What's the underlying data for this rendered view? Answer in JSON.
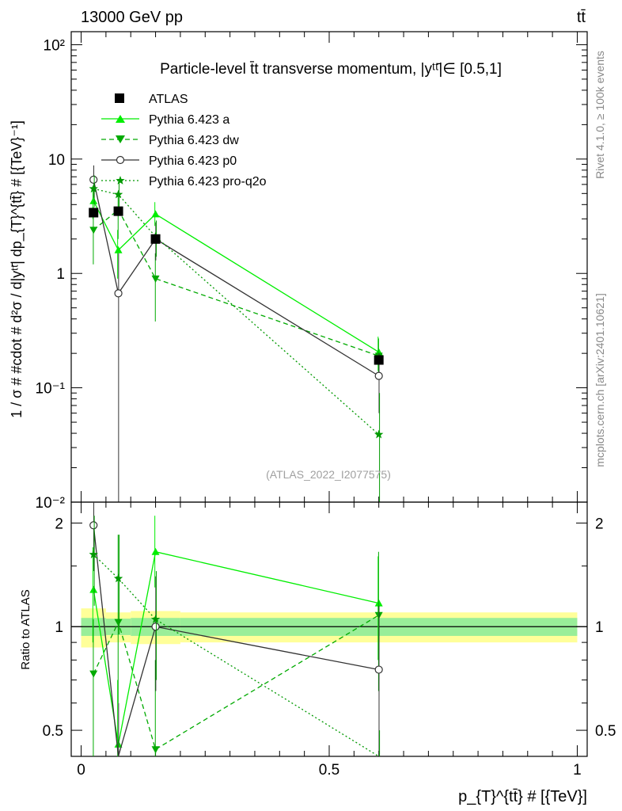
{
  "header": {
    "left": "13000 GeV pp",
    "right": "tt̄"
  },
  "side_labels": {
    "rivet": "Rivet 4.1.0, ≥ 100k events",
    "mcplots": "mcplots.cern.ch [arXiv:2401.10621]"
  },
  "chart_data": {
    "type": "line",
    "title": "Particle-level t̄t transverse momentum, |yᵗᵗ̄|∈ [0.5,1]",
    "watermark": "(ATLAS_2022_I2077575)",
    "xlabel": "p_{T}^{tt̄} # [{TeV}]",
    "ylabel": "1 / σ # #cdot # d²σ / d|yᵗᵗ̄| dp_{T}^{tt̄} # [{TeV}⁻¹]",
    "ratio_ylabel": "Ratio to ATLAS",
    "xlim": [
      0,
      1
    ],
    "ylim": [
      0.01,
      130
    ],
    "ratio_ylim": [
      0.42,
      2.3
    ],
    "x_ticks": [
      {
        "value": 0,
        "label": "0"
      },
      {
        "value": 0.5,
        "label": "0.5"
      },
      {
        "value": 1,
        "label": "1"
      }
    ],
    "y_ticks": [
      {
        "value": 100,
        "label": "10²"
      },
      {
        "value": 10,
        "label": "10"
      },
      {
        "value": 1,
        "label": "1"
      },
      {
        "value": 0.1,
        "label": "10⁻¹"
      },
      {
        "value": 0.01,
        "label": "10⁻²"
      }
    ],
    "ratio_ticks": [
      {
        "value": 2,
        "label": "2"
      },
      {
        "value": 1,
        "label": "1"
      },
      {
        "value": 0.5,
        "label": "0.5"
      }
    ],
    "bins": [
      [
        0,
        0.05
      ],
      [
        0.05,
        0.1
      ],
      [
        0.1,
        0.2
      ],
      [
        0.2,
        1.0
      ]
    ],
    "data": {
      "name": "ATLAS",
      "x": [
        0.025,
        0.075,
        0.15,
        0.6
      ],
      "y": [
        3.4,
        3.5,
        2.0,
        0.175
      ]
    },
    "band_inner": [
      0.06,
      0.055,
      0.06,
      0.06
    ],
    "band_outer": [
      0.13,
      0.1,
      0.11,
      0.1
    ],
    "series": [
      {
        "name": "Pythia 6.423 a",
        "color": "#00ee00",
        "marker": "triangle-up",
        "dash": "",
        "x": [
          0.025,
          0.075,
          0.15,
          0.6
        ],
        "y": [
          4.3,
          1.6,
          3.3,
          0.205
        ],
        "ylo": [
          3.0,
          0.9,
          2.6,
          0.14
        ],
        "yhi": [
          5.8,
          2.4,
          4.2,
          0.28
        ],
        "ratio": [
          1.28,
          0.455,
          1.65,
          1.17
        ],
        "rlo": [
          0.9,
          0.42,
          1.3,
          0.8
        ],
        "rhi": [
          1.7,
          0.7,
          2.1,
          1.6
        ]
      },
      {
        "name": "Pythia 6.423 dw",
        "color": "#00aa00",
        "marker": "triangle-down",
        "dash": "6,4",
        "x": [
          0.025,
          0.075,
          0.15,
          0.6
        ],
        "y": [
          2.4,
          3.6,
          0.9,
          0.19
        ],
        "ylo": [
          1.2,
          2.0,
          0.38,
          0.12
        ],
        "yhi": [
          3.8,
          5.2,
          1.5,
          0.27
        ],
        "ratio": [
          0.73,
          1.03,
          0.44,
          1.08
        ],
        "rlo": [
          0.42,
          0.6,
          0.42,
          0.65
        ],
        "rhi": [
          1.05,
          1.85,
          0.8,
          1.65
        ]
      },
      {
        "name": "Pythia 6.423 p0",
        "color": "#333333",
        "marker": "circle-open",
        "dash": "",
        "x": [
          0.025,
          0.075,
          0.15,
          0.6
        ],
        "y": [
          6.6,
          0.67,
          2.0,
          0.127
        ],
        "ylo": [
          4.6,
          0.0001,
          1.3,
          0.06
        ],
        "yhi": [
          8.8,
          1.5,
          2.8,
          0.2
        ],
        "ratio": [
          1.97,
          0.2,
          1.0,
          0.75
        ],
        "rlo": [
          1.45,
          0.2,
          0.65,
          0.35
        ],
        "rhi": [
          2.5,
          0.6,
          1.4,
          1.15
        ]
      },
      {
        "name": "Pythia 6.423 pro-q2o",
        "color": "#009900",
        "marker": "star",
        "dash": "2,3",
        "x": [
          0.025,
          0.075,
          0.15,
          0.6
        ],
        "y": [
          5.5,
          4.9,
          2.1,
          0.039
        ],
        "ylo": [
          3.8,
          3.2,
          1.4,
          0.0001
        ],
        "yhi": [
          7.2,
          6.6,
          2.9,
          0.09
        ],
        "ratio": [
          1.62,
          1.38,
          1.05,
          0.2
        ],
        "rlo": [
          1.15,
          0.95,
          0.7,
          0.2
        ],
        "rhi": [
          2.1,
          1.85,
          1.45,
          0.5
        ]
      }
    ]
  }
}
